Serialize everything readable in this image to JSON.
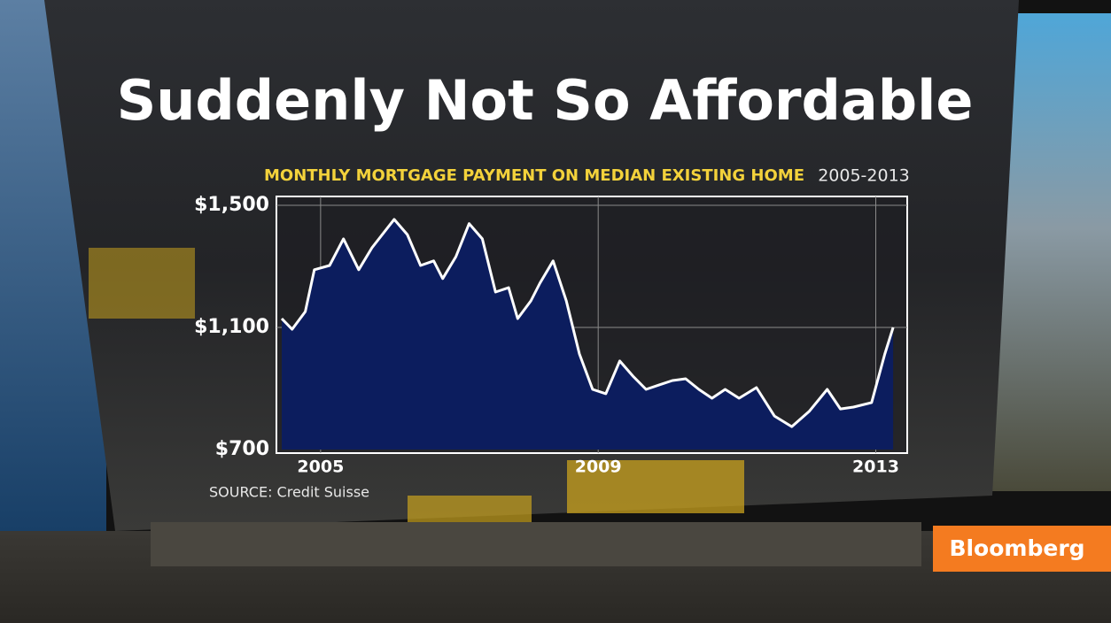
{
  "chart_data": {
    "type": "area",
    "title": "Suddenly Not So Affordable",
    "subtitle": "MONTHLY MORTGAGE PAYMENT ON MEDIAN EXISTING HOME",
    "period": "2005-2013",
    "source": "SOURCE: Credit Suisse",
    "x": [
      2004.44,
      2004.59,
      2004.78,
      2004.91,
      2005.13,
      2005.33,
      2005.55,
      2005.74,
      2006.06,
      2006.25,
      2006.44,
      2006.63,
      2006.76,
      2006.95,
      2007.14,
      2007.33,
      2007.52,
      2007.71,
      2007.84,
      2008.03,
      2008.16,
      2008.35,
      2008.54,
      2008.73,
      2008.92,
      2009.11,
      2009.31,
      2009.5,
      2009.69,
      2009.88,
      2010.07,
      2010.26,
      2010.45,
      2010.64,
      2010.83,
      2011.03,
      2011.28,
      2011.54,
      2011.79,
      2012.04,
      2012.3,
      2012.49,
      2012.68,
      2012.94,
      2013.13,
      2013.25
    ],
    "values": [
      1129,
      1094,
      1152,
      1289,
      1303,
      1390,
      1289,
      1361,
      1454,
      1404,
      1303,
      1318,
      1260,
      1332,
      1440,
      1390,
      1216,
      1230,
      1129,
      1187,
      1245,
      1318,
      1187,
      1013,
      897,
      883,
      990,
      941,
      897,
      912,
      926,
      932,
      897,
      868,
      897,
      868,
      903,
      810,
      775,
      825,
      897,
      833,
      839,
      854,
      1013,
      1100
    ],
    "color": "#0c1d5e",
    "line_color": "#ffffff",
    "xlim": [
      2004.44,
      2013.3
    ],
    "xticks": [
      2005,
      2009,
      2013
    ],
    "ylim": [
      700,
      1500
    ],
    "yticks": [
      {
        "value": 700,
        "label": "$700"
      },
      {
        "value": 1100,
        "label": "$1,100"
      },
      {
        "value": 1500,
        "label": "$1,500"
      }
    ],
    "grid": true
  },
  "brand": "Bloomberg"
}
